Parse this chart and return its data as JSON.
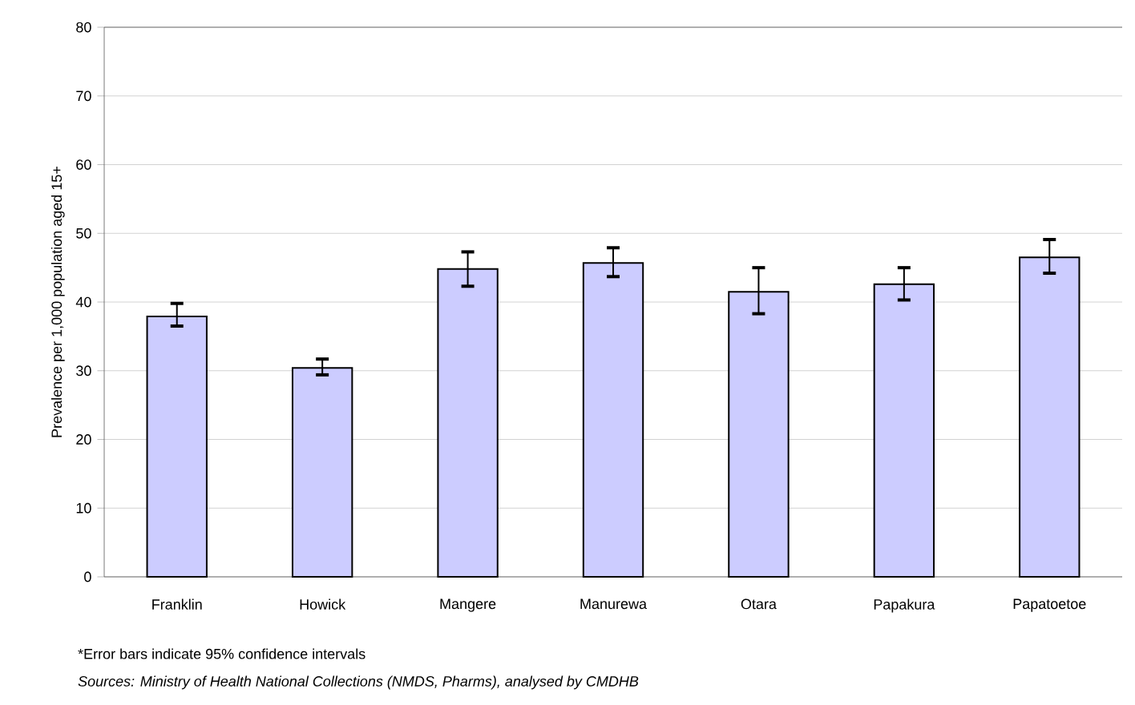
{
  "chart_data": {
    "type": "bar",
    "ylabel": "Prevalence per 1,000 population aged 15+",
    "categories": [
      "Franklin",
      "Howick",
      "Mangere",
      "Manurewa",
      "Otara",
      "Papakura",
      "Papatoetoe"
    ],
    "values": [
      37.9,
      30.4,
      44.8,
      45.7,
      41.5,
      42.6,
      46.5
    ],
    "errors": [
      [
        36.5,
        39.8
      ],
      [
        29.4,
        31.7
      ],
      [
        42.3,
        47.3
      ],
      [
        43.7,
        47.9
      ],
      [
        38.3,
        45.0
      ],
      [
        40.3,
        45.0
      ],
      [
        44.2,
        49.1
      ]
    ],
    "color": "#ccccff",
    "ylim": [
      0,
      80
    ],
    "yticks": [
      0,
      10,
      20,
      30,
      40,
      50,
      60,
      70,
      80
    ],
    "grid": "y",
    "annotations": [
      "*Error bars indicate 95% confidence intervals",
      "Sources: Ministry of Health National Collections (NMDS, Pharms), analysed by CMDHB"
    ]
  }
}
